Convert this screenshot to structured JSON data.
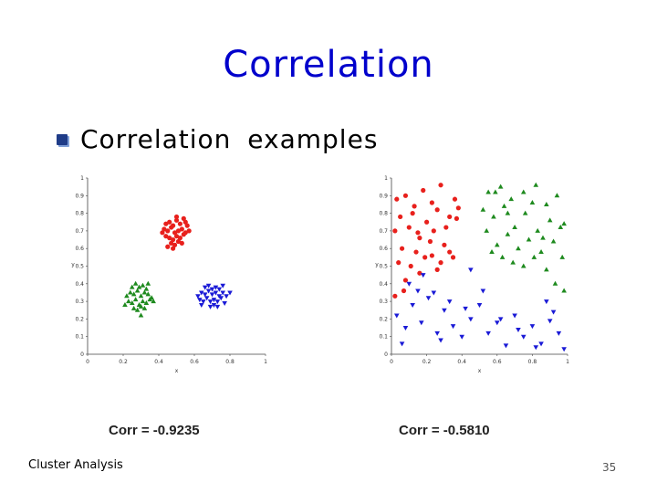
{
  "slide": {
    "title": "Correlation",
    "bullet": "Correlation examples",
    "footer_left": "Cluster Analysis",
    "page_number": "35"
  },
  "colors": {
    "title": "#0000cc",
    "red": "#e8201c",
    "green": "#1e8a1e",
    "blue": "#1a1ad6"
  },
  "chart_data": [
    {
      "type": "scatter",
      "caption": "Corr = -0.9235",
      "xlabel": "x",
      "ylabel": "y",
      "xlim": [
        0,
        1
      ],
      "ylim": [
        0,
        1
      ],
      "xticks": [
        "0",
        "0.2",
        "0.4",
        "0.6",
        "0.8",
        "1"
      ],
      "yticks": [
        "0",
        "0.1",
        "0.2",
        "0.3",
        "0.4",
        "0.5",
        "0.6",
        "0.7",
        "0.8",
        "0.9",
        "1"
      ],
      "series": [
        {
          "color": "red",
          "marker": "circle",
          "points": [
            [
              0.44,
              0.74
            ],
            [
              0.46,
              0.75
            ],
            [
              0.48,
              0.73
            ],
            [
              0.5,
              0.76
            ],
            [
              0.52,
              0.74
            ],
            [
              0.54,
              0.77
            ],
            [
              0.55,
              0.75
            ],
            [
              0.56,
              0.73
            ],
            [
              0.43,
              0.71
            ],
            [
              0.45,
              0.7
            ],
            [
              0.47,
              0.72
            ],
            [
              0.49,
              0.69
            ],
            [
              0.51,
              0.7
            ],
            [
              0.53,
              0.71
            ],
            [
              0.55,
              0.69
            ],
            [
              0.44,
              0.67
            ],
            [
              0.46,
              0.66
            ],
            [
              0.48,
              0.65
            ],
            [
              0.5,
              0.67
            ],
            [
              0.52,
              0.66
            ],
            [
              0.54,
              0.68
            ],
            [
              0.47,
              0.63
            ],
            [
              0.49,
              0.62
            ],
            [
              0.51,
              0.64
            ],
            [
              0.45,
              0.61
            ],
            [
              0.53,
              0.63
            ],
            [
              0.5,
              0.78
            ],
            [
              0.42,
              0.69
            ],
            [
              0.57,
              0.7
            ],
            [
              0.48,
              0.6
            ]
          ]
        },
        {
          "color": "green",
          "marker": "triangle-up",
          "points": [
            [
              0.22,
              0.33
            ],
            [
              0.24,
              0.35
            ],
            [
              0.26,
              0.34
            ],
            [
              0.28,
              0.36
            ],
            [
              0.3,
              0.33
            ],
            [
              0.32,
              0.35
            ],
            [
              0.34,
              0.34
            ],
            [
              0.36,
              0.32
            ],
            [
              0.23,
              0.3
            ],
            [
              0.25,
              0.29
            ],
            [
              0.27,
              0.31
            ],
            [
              0.29,
              0.28
            ],
            [
              0.31,
              0.3
            ],
            [
              0.33,
              0.29
            ],
            [
              0.35,
              0.31
            ],
            [
              0.26,
              0.26
            ],
            [
              0.28,
              0.25
            ],
            [
              0.3,
              0.27
            ],
            [
              0.32,
              0.26
            ],
            [
              0.29,
              0.38
            ],
            [
              0.31,
              0.39
            ],
            [
              0.27,
              0.4
            ],
            [
              0.33,
              0.37
            ],
            [
              0.25,
              0.38
            ],
            [
              0.37,
              0.3
            ],
            [
              0.21,
              0.28
            ],
            [
              0.3,
              0.22
            ],
            [
              0.34,
              0.4
            ]
          ]
        },
        {
          "color": "blue",
          "marker": "triangle-down",
          "points": [
            [
              0.62,
              0.33
            ],
            [
              0.64,
              0.35
            ],
            [
              0.66,
              0.34
            ],
            [
              0.68,
              0.36
            ],
            [
              0.7,
              0.34
            ],
            [
              0.72,
              0.35
            ],
            [
              0.74,
              0.33
            ],
            [
              0.76,
              0.35
            ],
            [
              0.63,
              0.31
            ],
            [
              0.65,
              0.3
            ],
            [
              0.67,
              0.32
            ],
            [
              0.69,
              0.3
            ],
            [
              0.71,
              0.31
            ],
            [
              0.73,
              0.3
            ],
            [
              0.75,
              0.32
            ],
            [
              0.78,
              0.33
            ],
            [
              0.66,
              0.38
            ],
            [
              0.68,
              0.39
            ],
            [
              0.7,
              0.37
            ],
            [
              0.72,
              0.38
            ],
            [
              0.74,
              0.37
            ],
            [
              0.76,
              0.39
            ],
            [
              0.69,
              0.27
            ],
            [
              0.71,
              0.28
            ],
            [
              0.73,
              0.27
            ],
            [
              0.77,
              0.29
            ],
            [
              0.64,
              0.28
            ],
            [
              0.8,
              0.35
            ]
          ]
        }
      ]
    },
    {
      "type": "scatter",
      "caption": "Corr = -0.5810",
      "xlabel": "x",
      "ylabel": "y",
      "xlim": [
        0,
        1
      ],
      "ylim": [
        0,
        1
      ],
      "xticks": [
        "0",
        "0.2",
        "0.4",
        "0.6",
        "0.8",
        "1"
      ],
      "yticks": [
        "0",
        "0.1",
        "0.2",
        "0.3",
        "0.4",
        "0.5",
        "0.6",
        "0.7",
        "0.8",
        "0.9",
        "1"
      ],
      "series": [
        {
          "color": "red",
          "marker": "circle",
          "points": [
            [
              0.03,
              0.88
            ],
            [
              0.08,
              0.9
            ],
            [
              0.13,
              0.84
            ],
            [
              0.18,
              0.93
            ],
            [
              0.23,
              0.86
            ],
            [
              0.28,
              0.96
            ],
            [
              0.33,
              0.78
            ],
            [
              0.38,
              0.83
            ],
            [
              0.05,
              0.78
            ],
            [
              0.12,
              0.8
            ],
            [
              0.2,
              0.75
            ],
            [
              0.26,
              0.82
            ],
            [
              0.31,
              0.72
            ],
            [
              0.37,
              0.77
            ],
            [
              0.02,
              0.7
            ],
            [
              0.1,
              0.72
            ],
            [
              0.16,
              0.66
            ],
            [
              0.24,
              0.7
            ],
            [
              0.3,
              0.62
            ],
            [
              0.35,
              0.55
            ],
            [
              0.06,
              0.6
            ],
            [
              0.14,
              0.58
            ],
            [
              0.22,
              0.64
            ],
            [
              0.28,
              0.52
            ],
            [
              0.04,
              0.52
            ],
            [
              0.11,
              0.5
            ],
            [
              0.19,
              0.55
            ],
            [
              0.26,
              0.48
            ],
            [
              0.33,
              0.58
            ],
            [
              0.08,
              0.42
            ],
            [
              0.16,
              0.46
            ],
            [
              0.23,
              0.56
            ],
            [
              0.02,
              0.33
            ],
            [
              0.07,
              0.36
            ],
            [
              0.15,
              0.69
            ],
            [
              0.36,
              0.88
            ]
          ]
        },
        {
          "color": "green",
          "marker": "triangle-up",
          "points": [
            [
              0.55,
              0.92
            ],
            [
              0.62,
              0.95
            ],
            [
              0.68,
              0.88
            ],
            [
              0.75,
              0.92
            ],
            [
              0.82,
              0.96
            ],
            [
              0.88,
              0.85
            ],
            [
              0.94,
              0.9
            ],
            [
              0.98,
              0.74
            ],
            [
              0.52,
              0.82
            ],
            [
              0.58,
              0.78
            ],
            [
              0.64,
              0.84
            ],
            [
              0.7,
              0.72
            ],
            [
              0.76,
              0.8
            ],
            [
              0.83,
              0.7
            ],
            [
              0.9,
              0.76
            ],
            [
              0.96,
              0.72
            ],
            [
              0.54,
              0.7
            ],
            [
              0.6,
              0.62
            ],
            [
              0.66,
              0.68
            ],
            [
              0.72,
              0.6
            ],
            [
              0.78,
              0.65
            ],
            [
              0.85,
              0.58
            ],
            [
              0.92,
              0.64
            ],
            [
              0.97,
              0.55
            ],
            [
              0.57,
              0.58
            ],
            [
              0.63,
              0.55
            ],
            [
              0.69,
              0.52
            ],
            [
              0.75,
              0.5
            ],
            [
              0.81,
              0.55
            ],
            [
              0.88,
              0.48
            ],
            [
              0.93,
              0.4
            ],
            [
              0.98,
              0.36
            ],
            [
              0.59,
              0.92
            ],
            [
              0.8,
              0.86
            ],
            [
              0.86,
              0.66
            ],
            [
              0.66,
              0.8
            ]
          ]
        },
        {
          "color": "blue",
          "marker": "triangle-down",
          "points": [
            [
              0.03,
              0.22
            ],
            [
              0.08,
              0.15
            ],
            [
              0.12,
              0.28
            ],
            [
              0.17,
              0.18
            ],
            [
              0.21,
              0.32
            ],
            [
              0.26,
              0.12
            ],
            [
              0.3,
              0.25
            ],
            [
              0.35,
              0.16
            ],
            [
              0.4,
              0.1
            ],
            [
              0.45,
              0.2
            ],
            [
              0.5,
              0.28
            ],
            [
              0.55,
              0.12
            ],
            [
              0.6,
              0.18
            ],
            [
              0.65,
              0.05
            ],
            [
              0.7,
              0.22
            ],
            [
              0.75,
              0.1
            ],
            [
              0.8,
              0.16
            ],
            [
              0.85,
              0.06
            ],
            [
              0.9,
              0.19
            ],
            [
              0.95,
              0.12
            ],
            [
              0.98,
              0.03
            ],
            [
              0.06,
              0.06
            ],
            [
              0.15,
              0.36
            ],
            [
              0.24,
              0.35
            ],
            [
              0.33,
              0.3
            ],
            [
              0.42,
              0.26
            ],
            [
              0.52,
              0.36
            ],
            [
              0.62,
              0.2
            ],
            [
              0.72,
              0.14
            ],
            [
              0.82,
              0.04
            ],
            [
              0.92,
              0.24
            ],
            [
              0.28,
              0.08
            ],
            [
              0.45,
              0.48
            ],
            [
              0.18,
              0.45
            ],
            [
              0.1,
              0.4
            ],
            [
              0.88,
              0.3
            ]
          ]
        }
      ]
    }
  ]
}
